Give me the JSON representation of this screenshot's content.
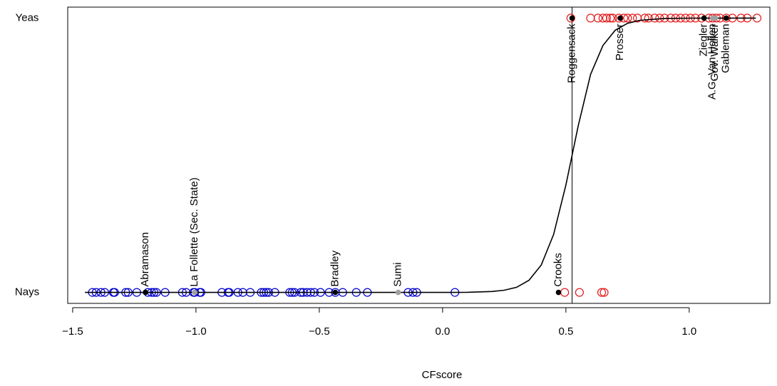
{
  "chart_data": {
    "type": "scatter",
    "x_label": "CFscore",
    "xlim": [
      -1.52,
      1.327
    ],
    "ylim": [
      -0.04,
      1.04
    ],
    "xticks": [
      {
        "value": -1.5,
        "label": "−1.5"
      },
      {
        "value": -1.0,
        "label": "−1.0"
      },
      {
        "value": -0.5,
        "label": "−0.5"
      },
      {
        "value": 0.0,
        "label": "0.0"
      },
      0.5,
      {
        "value": 1.0,
        "label": "1.0"
      }
    ],
    "yticks": [
      {
        "value": 0,
        "label": "Nays"
      },
      {
        "value": 1,
        "label": "Yeas"
      }
    ],
    "vline": 0.525,
    "series": [
      {
        "color": "#0000cc",
        "x": [
          -1.42,
          -1.405,
          -1.385,
          -1.37,
          -1.335,
          -1.33,
          -1.285,
          -1.275,
          -1.24,
          -1.195,
          -1.18,
          -1.17,
          -1.16,
          -1.125,
          -1.055,
          -1.04,
          -1.01,
          -1.005,
          -0.985,
          -0.98,
          -0.895,
          -0.87,
          -0.865,
          -0.83,
          -0.81,
          -0.78,
          -0.735,
          -0.725,
          -0.715,
          -0.705,
          -0.68,
          -0.62,
          -0.61,
          -0.6,
          -0.575,
          -0.565,
          -0.55,
          -0.535,
          -0.52,
          -0.495,
          -0.46,
          -0.435,
          -0.405,
          -0.35,
          -0.305,
          -0.14,
          -0.12,
          -0.105,
          0.05
        ],
        "y": [
          0,
          0,
          0,
          0,
          0,
          0,
          0,
          0,
          0,
          0,
          0,
          0,
          0,
          0,
          0,
          0,
          0,
          0,
          0,
          0,
          0,
          0,
          0,
          0,
          0,
          0,
          0,
          0,
          0,
          0,
          0,
          0,
          0,
          0,
          0,
          0,
          0,
          0,
          0,
          0,
          0,
          0,
          0,
          0,
          0,
          0,
          0,
          0,
          0
        ]
      },
      {
        "color": "#e41a1c",
        "x": [
          0.495,
          0.555,
          0.645,
          0.655,
          0.52,
          0.6,
          0.63,
          0.65,
          0.665,
          0.68,
          0.69,
          0.715,
          0.735,
          0.75,
          0.77,
          0.79,
          0.82,
          0.835,
          0.86,
          0.88,
          0.9,
          0.925,
          0.945,
          0.965,
          0.985,
          1.005,
          1.025,
          1.05,
          1.08,
          1.095,
          1.11,
          1.125,
          1.15,
          1.175,
          1.21,
          1.235,
          1.275
        ],
        "y": [
          0,
          0,
          0,
          0,
          1,
          1,
          1,
          1,
          1,
          1,
          1,
          1,
          1,
          1,
          1,
          1,
          1,
          1,
          1,
          1,
          1,
          1,
          1,
          1,
          1,
          1,
          1,
          1,
          1,
          1,
          1,
          1,
          1,
          1,
          1,
          1,
          1
        ]
      }
    ],
    "curve": {
      "color": "#000000",
      "x": [
        -1.45,
        0,
        0.1,
        0.2,
        0.25,
        0.3,
        0.35,
        0.4,
        0.45,
        0.5,
        0.55,
        0.6,
        0.65,
        0.7,
        0.75,
        0.8,
        0.9,
        1.0,
        1.27
      ],
      "y": [
        0,
        0.0001,
        0.0006,
        0.0033,
        0.0079,
        0.0187,
        0.044,
        0.1,
        0.211,
        0.392,
        0.608,
        0.795,
        0.9,
        0.956,
        0.981,
        0.992,
        0.9986,
        0.9998,
        1
      ]
    },
    "labeled": [
      {
        "label": "Abramason",
        "x": -1.205,
        "y": 0,
        "color": "#000000"
      },
      {
        "label": "La Follette (Sec. State)",
        "x": -1.005,
        "y": 0,
        "color": "#a0a0a0"
      },
      {
        "label": "Bradley",
        "x": -0.435,
        "y": 0,
        "color": "#000000"
      },
      {
        "label": "Sumi",
        "x": -0.18,
        "y": 0,
        "color": "#a0a0a0"
      },
      {
        "label": "Crooks",
        "x": 0.47,
        "y": 0,
        "color": "#000000"
      },
      {
        "label": "Roggensack",
        "x": 0.525,
        "y": 1,
        "color": "#000000"
      },
      {
        "label": "Prosser",
        "x": 0.72,
        "y": 1,
        "color": "#000000"
      },
      {
        "label": "A.G. Van Hollen",
        "x": 1.095,
        "y": 1,
        "color": "#a0a0a0"
      },
      {
        "label": "Gov. Walker",
        "x": 1.105,
        "y": 1,
        "color": "#a0a0a0"
      },
      {
        "label": "Ziegler",
        "x": 1.06,
        "y": 1,
        "color": "#000000"
      },
      {
        "label": "Gableman",
        "x": 1.15,
        "y": 1,
        "color": "#000000"
      }
    ]
  }
}
